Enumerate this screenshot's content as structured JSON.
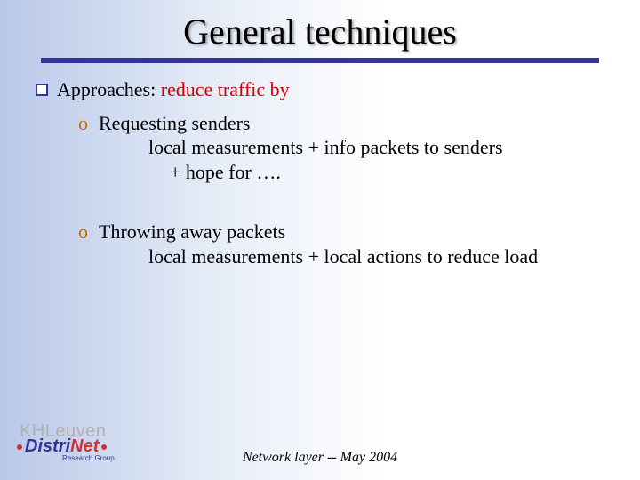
{
  "title": "General techniques",
  "main_bullet": {
    "label": "Approaches:",
    "subtext": "reduce traffic by"
  },
  "items": [
    {
      "line1": "Requesting  senders",
      "line2": "local measurements + info packets to senders",
      "line3": "+ hope for …."
    },
    {
      "line1": "Throwing away packets",
      "line2": "local measurements + local actions to reduce load",
      "line3": ""
    }
  ],
  "footer": "Network layer  --  May 2004",
  "logo": {
    "line1": "KHLeuven",
    "brand_a": "Distri",
    "brand_b": "Net",
    "subline": "Research Group"
  },
  "colors": {
    "accent": "#333399",
    "subtext": "#cc0000",
    "o_bullet": "#cc6600"
  }
}
